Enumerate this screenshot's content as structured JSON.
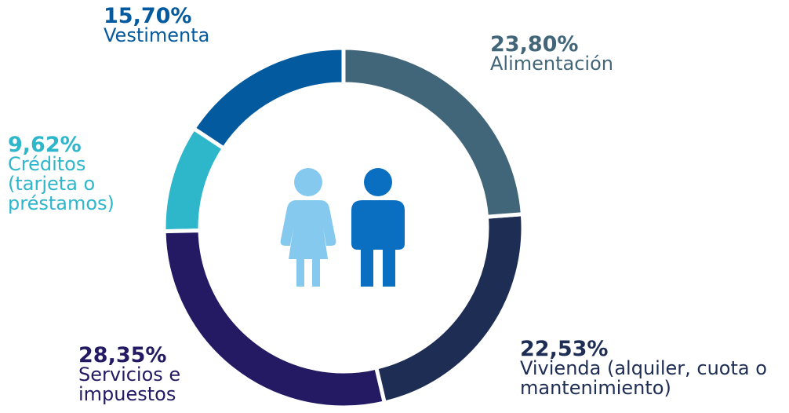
{
  "chart_data": {
    "type": "donut",
    "categories": [
      "Alimentación",
      "Vivienda (alquiler, cuota o mantenimiento)",
      "Servicios e impuestos",
      "Créditos (tarjeta o préstamos)",
      "Vestimenta"
    ],
    "values": [
      23.8,
      22.53,
      28.35,
      9.62,
      15.7
    ],
    "value_labels": [
      "23,80%",
      "22,53%",
      "28,35%",
      "9,62%",
      "15,70%"
    ],
    "colors": [
      "#426679",
      "#1e2d54",
      "#231a63",
      "#2eb6cb",
      "#045a9e"
    ]
  }
}
